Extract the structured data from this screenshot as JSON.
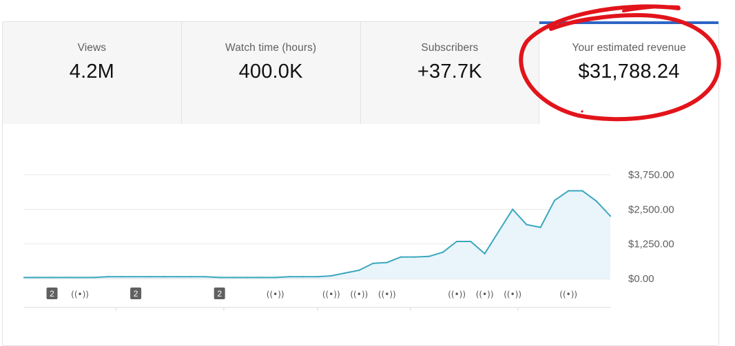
{
  "metrics": [
    {
      "label": "Views",
      "value": "4.2M"
    },
    {
      "label": "Watch time (hours)",
      "value": "400.0K"
    },
    {
      "label": "Subscribers",
      "value": "+37.7K"
    },
    {
      "label": "Your estimated revenue",
      "value": "$31,788.24"
    }
  ],
  "active_tab": 3,
  "colors": {
    "line": "#3aa7bd",
    "area": "#e9f4fb",
    "accent": "#2f66c5",
    "annotation_circle": "#e2141b"
  },
  "chart_data": {
    "type": "area",
    "y_tick_labels": [
      "$0.00",
      "$1,250.00",
      "$2,500.00",
      "$3,750.00"
    ],
    "y_ticks": [
      0,
      1250,
      2500,
      3750
    ],
    "ylim": [
      0,
      3750
    ],
    "grid": true,
    "values": [
      40,
      40,
      40,
      40,
      40,
      40,
      70,
      70,
      70,
      70,
      70,
      70,
      70,
      70,
      40,
      40,
      40,
      40,
      40,
      70,
      70,
      70,
      100,
      200,
      300,
      550,
      580,
      780,
      780,
      800,
      950,
      1340,
      1340,
      900,
      1700,
      2500,
      1950,
      1850,
      2820,
      3170,
      3170,
      2800,
      2260
    ],
    "markers": [
      {
        "type": "badge",
        "label": "2",
        "index": 2
      },
      {
        "type": "live",
        "label": "((•))",
        "index": 4
      },
      {
        "type": "badge",
        "label": "2",
        "index": 8
      },
      {
        "type": "badge",
        "label": "2",
        "index": 14
      },
      {
        "type": "live",
        "label": "((•))",
        "index": 18
      },
      {
        "type": "live",
        "label": "((•))",
        "index": 22
      },
      {
        "type": "live",
        "label": "((•))",
        "index": 24
      },
      {
        "type": "live",
        "label": "((•))",
        "index": 26
      },
      {
        "type": "live",
        "label": "((•))",
        "index": 31
      },
      {
        "type": "live",
        "label": "((•))",
        "index": 33
      },
      {
        "type": "live",
        "label": "((•))",
        "index": 35
      },
      {
        "type": "live",
        "label": "((•))",
        "index": 39
      }
    ]
  }
}
